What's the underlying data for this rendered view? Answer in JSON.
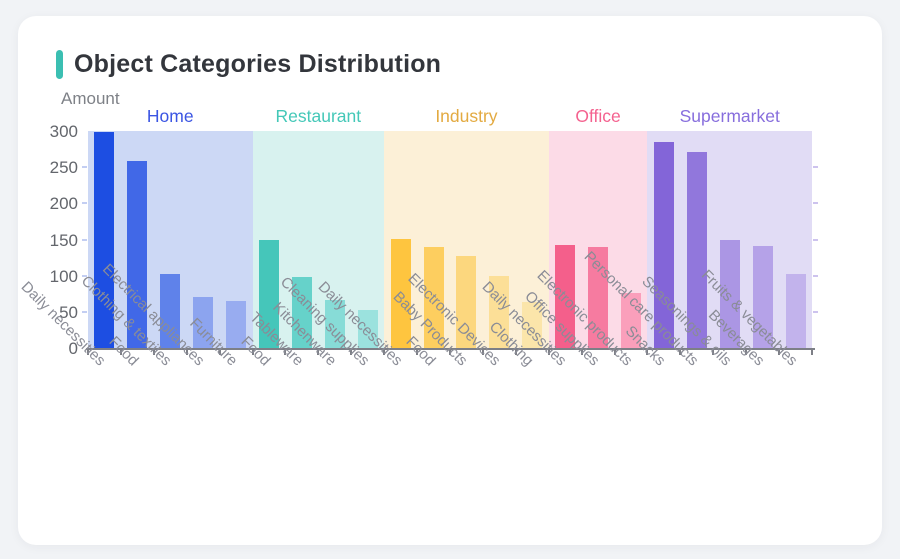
{
  "page": {
    "background": "#F1F3F6",
    "card_background": "#FFFFFF"
  },
  "header": {
    "title": "Object Categories Distribution",
    "accent_color": "#3BBFB2"
  },
  "chart_data": {
    "type": "bar",
    "title": "Object Categories Distribution",
    "xlabel": "",
    "ylabel": "Amount",
    "ylim": [
      0,
      300
    ],
    "yticks": [
      0,
      50,
      100,
      150,
      200,
      250,
      300
    ],
    "grid": false,
    "legend_position": "group-labels-top",
    "axis_color": "#7D7F86",
    "tick_label_color": "#63666C",
    "category_label_color": "#8A8C96",
    "groups": [
      {
        "name": "Home",
        "label_color": "#3B55E3",
        "band_color": "#CCD8F5",
        "left_edge_tick_color": "#C3CEF2",
        "categories": [
          "Daily necessities",
          "Food",
          "Clothing & textiles",
          "Electrical appliances",
          "Furniture"
        ],
        "values": [
          298,
          258,
          103,
          70,
          65
        ],
        "bar_colors": [
          "#1D4EE2",
          "#4168E7",
          "#5F82EA",
          "#8CA4EF",
          "#98ACF0"
        ]
      },
      {
        "name": "Restaurant",
        "label_color": "#44C8B8",
        "band_color": "#D8F2EF",
        "categories": [
          "Food",
          "Tableware",
          "Kitchenware",
          "Cleaning supplies"
        ],
        "values": [
          150,
          98,
          66,
          52
        ],
        "bar_colors": [
          "#45C6BA",
          "#66D2CA",
          "#87DCD7",
          "#9BE2DE"
        ]
      },
      {
        "name": "Industry",
        "label_color": "#E3AA41",
        "band_color": "#FCF0D7",
        "categories": [
          "Daily necessities",
          "Food",
          "Baby Products",
          "Electronic Devices",
          "Clothing"
        ],
        "values": [
          151,
          139,
          127,
          100,
          64
        ],
        "bar_colors": [
          "#FEC53F",
          "#FDCE5F",
          "#FCD77E",
          "#FCDF97",
          "#FBE5AA"
        ]
      },
      {
        "name": "Office",
        "label_color": "#F4628F",
        "band_color": "#FCDBE7",
        "categories": [
          "Daily necessities",
          "Office supplies",
          "Electronic products"
        ],
        "values": [
          143,
          139,
          76
        ],
        "bar_colors": [
          "#F45F8B",
          "#F67BA0",
          "#FA9FBB"
        ]
      },
      {
        "name": "Supermarket",
        "label_color": "#876EDD",
        "band_color": "#E1DCF5",
        "right_edge_tick_color": "#CDC3EE",
        "categories": [
          "Snacks",
          "Personal care products",
          "Seasonings & oils",
          "Beverages",
          "Fruits & vegetables"
        ],
        "values": [
          285,
          271,
          149,
          141,
          102
        ],
        "bar_colors": [
          "#8365D8",
          "#9177DC",
          "#AB96E4",
          "#B5A2E8",
          "#C2B3EC"
        ]
      }
    ]
  }
}
